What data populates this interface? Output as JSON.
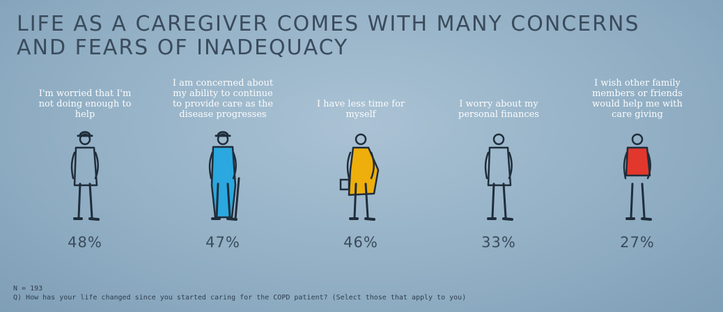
{
  "title_line1": "LIFE AS A CAREGIVER COMES WITH MANY CONCERNS",
  "title_line2": "AND FEARS OF INADEQUACY",
  "chart_data": {
    "type": "bar",
    "title": "LIFE AS A CAREGIVER COMES WITH MANY CONCERNS AND FEARS OF INADEQUACY",
    "categories": [
      "I'm worried that I'm not doing enough to help",
      "I am concerned about my ability to continue to provide care as the disease progresses",
      "I have less time for myself",
      "I worry about my personal finances",
      "I wish other family members or friends would help me with care giving"
    ],
    "values": [
      48,
      47,
      46,
      33,
      27
    ],
    "value_labels": [
      "48%",
      "47%",
      "46%",
      "33%",
      "27%"
    ],
    "unit": "%",
    "figure_colors": [
      "#93b0c5",
      "#2aa8df",
      "#eeae0b",
      "#93b0c5",
      "#e2372c"
    ]
  },
  "footer": {
    "n": "N = 193",
    "question": "Q) How has your life changed since you started caring for the COPD patient? (Select those that apply to you)"
  }
}
